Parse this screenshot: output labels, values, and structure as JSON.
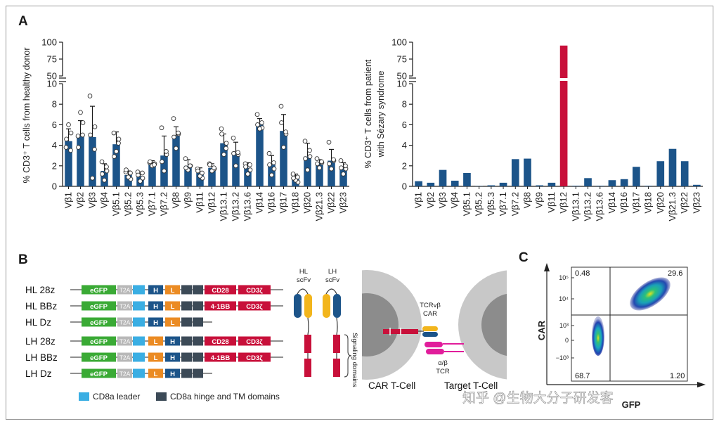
{
  "colors": {
    "bar": "#1c5489",
    "bar_highlight": "#c8103a",
    "egfp": "#3aaa35",
    "t2a": "#b8b8b8",
    "cd8_leader": "#3aaee3",
    "heavy": "#1c5489",
    "light": "#eb8b23",
    "hinge_tm": "#3c4a57",
    "signal": "#c8103a",
    "cell_outer": "#c8c8c8",
    "cell_inner": "#8c8c8c"
  },
  "panels": {
    "a": "A",
    "b": "B",
    "c": "C"
  },
  "chart_data": [
    {
      "type": "bar",
      "title": "",
      "ylabel": "% CD3⁺ T cells from healthy donor",
      "xlabel": "",
      "categories": [
        "Vβ1",
        "Vβ2",
        "Vβ3",
        "Vβ4",
        "Vβ5.1",
        "Vβ5.2",
        "Vβ5.3",
        "Vβ7.1",
        "Vβ7.2",
        "Vβ8",
        "Vβ9",
        "Vβ11",
        "Vβ12",
        "Vβ13.1",
        "Vβ13.2",
        "Vβ13.6",
        "Vβ14",
        "Vβ16",
        "Vβ17",
        "Vβ18",
        "Vβ20",
        "Vβ21.3",
        "Vβ22",
        "Vβ23"
      ],
      "values": [
        4.4,
        4.9,
        4.8,
        1.5,
        4.1,
        1.1,
        1.0,
        2.2,
        3.0,
        4.9,
        2.0,
        1.3,
        1.8,
        4.2,
        3.2,
        1.8,
        6.0,
        2.1,
        5.4,
        0.8,
        2.9,
        2.3,
        2.5,
        1.8
      ],
      "errors": [
        1.2,
        1.5,
        3.0,
        0.7,
        1.2,
        0.4,
        0.4,
        0.3,
        1.9,
        0.9,
        0.6,
        0.5,
        0.4,
        0.9,
        1.1,
        0.5,
        0.6,
        0.9,
        1.6,
        0.4,
        1.3,
        0.3,
        1.1,
        0.5
      ],
      "points": [
        [
          3.8,
          5.2,
          6.0,
          4.6,
          3.5
        ],
        [
          4.9,
          6.2,
          7.2,
          3.8,
          5.0
        ],
        [
          8.8,
          5.8,
          0.8,
          5.0,
          3.6
        ],
        [
          2.4,
          1.5,
          0.6,
          1.2,
          1.9
        ],
        [
          5.2,
          4.6,
          3.4,
          2.9,
          4.2
        ],
        [
          1.4,
          0.7,
          0.9,
          1.6,
          1.3
        ],
        [
          1.4,
          0.8,
          0.5,
          1.1,
          1.3
        ],
        [
          2.3,
          2.2,
          2.0,
          2.4,
          2.1
        ],
        [
          5.7,
          3.1,
          1.5,
          2.4,
          3.4
        ],
        [
          6.6,
          5.1,
          3.7,
          4.8,
          5.2
        ],
        [
          2.7,
          2.0,
          1.6,
          1.8,
          2.0
        ],
        [
          1.7,
          0.8,
          1.0,
          1.5,
          1.3
        ],
        [
          2.2,
          1.7,
          1.5,
          2.1,
          1.8
        ],
        [
          5.6,
          4.2,
          3.1,
          5.1,
          3.7
        ],
        [
          4.7,
          3.1,
          2.0,
          3.2,
          3.3
        ],
        [
          2.2,
          1.6,
          1.2,
          1.9,
          2.1
        ],
        [
          7.0,
          5.7,
          5.6,
          6.0,
          6.2
        ],
        [
          3.2,
          1.7,
          1.1,
          2.1,
          2.3
        ],
        [
          7.8,
          5.1,
          3.8,
          6.2,
          5.3
        ],
        [
          1.2,
          0.4,
          0.6,
          0.8,
          0.9
        ],
        [
          4.4,
          2.9,
          1.6,
          2.7,
          3.5
        ],
        [
          2.7,
          2.3,
          1.8,
          2.2,
          2.4
        ],
        [
          4.3,
          2.5,
          1.7,
          2.2,
          2.6
        ],
        [
          2.5,
          1.7,
          1.2,
          1.8,
          2.0
        ]
      ],
      "yticks": [
        "0",
        "2",
        "4",
        "6",
        "8",
        "10",
        "50",
        "75",
        "100"
      ],
      "ylim_lower": [
        0,
        10
      ],
      "ylim_upper": [
        50,
        100
      ],
      "grid": false
    },
    {
      "type": "bar",
      "title": "",
      "ylabel": "% CD3⁺ T cells from patient with Sézary syndrome",
      "xlabel": "",
      "categories": [
        "Vβ1",
        "Vβ2",
        "Vβ3",
        "Vβ4",
        "Vβ5.1",
        "Vβ5.2",
        "Vβ5.3",
        "Vβ7.1",
        "Vβ7.2",
        "Vβ8",
        "Vβ9",
        "Vβ11",
        "Vβ12",
        "Vβ13.1",
        "Vβ13.2",
        "Vβ13.6",
        "Vβ14",
        "Vβ16",
        "Vβ17",
        "Vβ18",
        "Vβ20",
        "Vβ21.3",
        "Vβ22",
        "Vβ23"
      ],
      "values": [
        0.5,
        0.35,
        1.6,
        0.55,
        1.3,
        0.03,
        0.1,
        0.35,
        2.65,
        2.7,
        0.1,
        0.35,
        95,
        0.05,
        0.8,
        0.05,
        0.6,
        0.7,
        1.9,
        0.05,
        2.45,
        3.65,
        2.45,
        0.15
      ],
      "highlight": "Vβ12",
      "yticks": [
        "0",
        "2",
        "4",
        "6",
        "8",
        "10",
        "50",
        "75",
        "100"
      ],
      "ylim_lower": [
        0,
        10
      ],
      "ylim_upper": [
        50,
        100
      ],
      "grid": false
    }
  ],
  "constructs": {
    "rows": [
      {
        "name": "HL 28z",
        "order": "HL",
        "signal": "28z"
      },
      {
        "name": "HL BBz",
        "order": "HL",
        "signal": "BBz"
      },
      {
        "name": "HL Dz",
        "order": "HL",
        "signal": "Dz"
      },
      {
        "name": "LH 28z",
        "order": "LH",
        "signal": "28z"
      },
      {
        "name": "LH BBz",
        "order": "LH",
        "signal": "BBz"
      },
      {
        "name": "LH Dz",
        "order": "LH",
        "signal": "Dz"
      }
    ],
    "seg_egfp": "eGFP",
    "seg_t2a": "T2A",
    "seg_h": "H",
    "seg_l": "L",
    "seg_cd28": "CD28",
    "seg_41bb": "4-1BB",
    "seg_cd3z": "CD3ζ"
  },
  "legend": {
    "cd8_leader": "CD8a leader",
    "hinge_tm": "CD8a hinge and TM domains"
  },
  "schematic": {
    "hl_label": "HL",
    "lh_label": "LH",
    "scfv_label": "scFv",
    "signaling_label": "Signaling domains",
    "tcr_car_l1": "TCRvβ",
    "tcr_car_l2": "CAR",
    "ab_tcr_l1": "α/β",
    "ab_tcr_l2": "TCR",
    "car_cell": "CAR T-Cell",
    "target_cell": "Target T-Cell"
  },
  "flow": {
    "xlabel": "GFP",
    "ylabel": "CAR",
    "ytick_labels": [
      "10⁵",
      "10⁴",
      "10³",
      "0",
      "−10³"
    ],
    "q_ul": "0.48",
    "q_ur": "29.6",
    "q_ll": "68.7",
    "q_lr": "1.20"
  },
  "watermark": "知乎 @生物大分子研发客"
}
